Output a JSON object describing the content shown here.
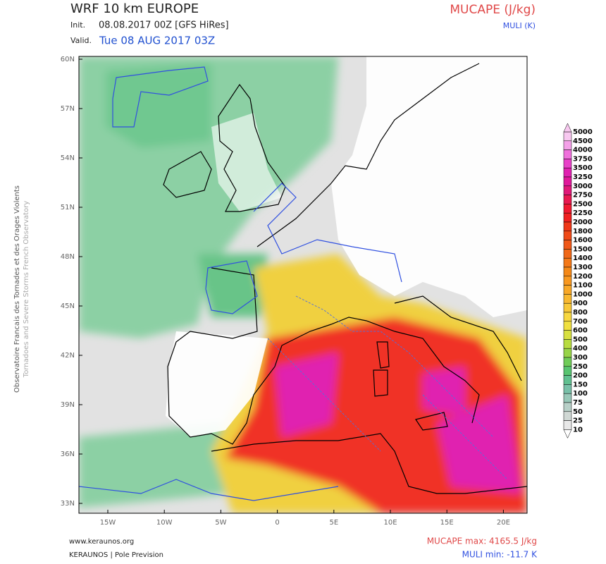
{
  "header": {
    "title": "WRF 10 km EUROPE",
    "init_label": "Init.",
    "init": "08.08.2017 00Z [GFS HiRes]",
    "valid_label": "Valid.",
    "valid": "Tue 08 AUG 2017 03Z",
    "field": "MUCAPE (J/kg)",
    "contour": "MULI (K)"
  },
  "map": {
    "lat_labels": [
      "60N",
      "57N",
      "54N",
      "51N",
      "48N",
      "45N",
      "42N",
      "39N",
      "36N",
      "33N"
    ],
    "lon_labels": [
      "15W",
      "10W",
      "5W",
      "0",
      "5E",
      "10E",
      "15E",
      "20E"
    ]
  },
  "colorbar": {
    "levels": [
      "5000",
      "4500",
      "4000",
      "3750",
      "3500",
      "3250",
      "3000",
      "2750",
      "2500",
      "2250",
      "2000",
      "1800",
      "1600",
      "1500",
      "1400",
      "1300",
      "1200",
      "1100",
      "1000",
      "900",
      "800",
      "700",
      "600",
      "500",
      "400",
      "300",
      "250",
      "200",
      "150",
      "100",
      "75",
      "50",
      "25",
      "10"
    ],
    "colors": [
      "#f8c8f0",
      "#f4a0e8",
      "#f070dc",
      "#e840c8",
      "#e020b0",
      "#e0189a",
      "#e01878",
      "#e81850",
      "#f01830",
      "#f02020",
      "#f03818",
      "#f04a18",
      "#f05818",
      "#f06818",
      "#f47818",
      "#f48818",
      "#f89820",
      "#f8a828",
      "#f8b830",
      "#f8c838",
      "#f8d840",
      "#f0e040",
      "#d8e040",
      "#b8dc40",
      "#98d448",
      "#70cc58",
      "#58c470",
      "#60c090",
      "#78c0a8",
      "#98c8b8",
      "#b8d0c8",
      "#d0d8d4",
      "#e8e8e8"
    ]
  },
  "side_text": [
    "Observatoire Francais des Tornades et des Orages Violents",
    "Tornadoes and Severe Storms French Observatory"
  ],
  "footer": {
    "website": "www.keraunos.org",
    "credit": "KERAUNOS | Pole Prevision",
    "max": "MUCAPE max: 4165.5 J/kg",
    "min": "MULI min: -11.7 K"
  }
}
